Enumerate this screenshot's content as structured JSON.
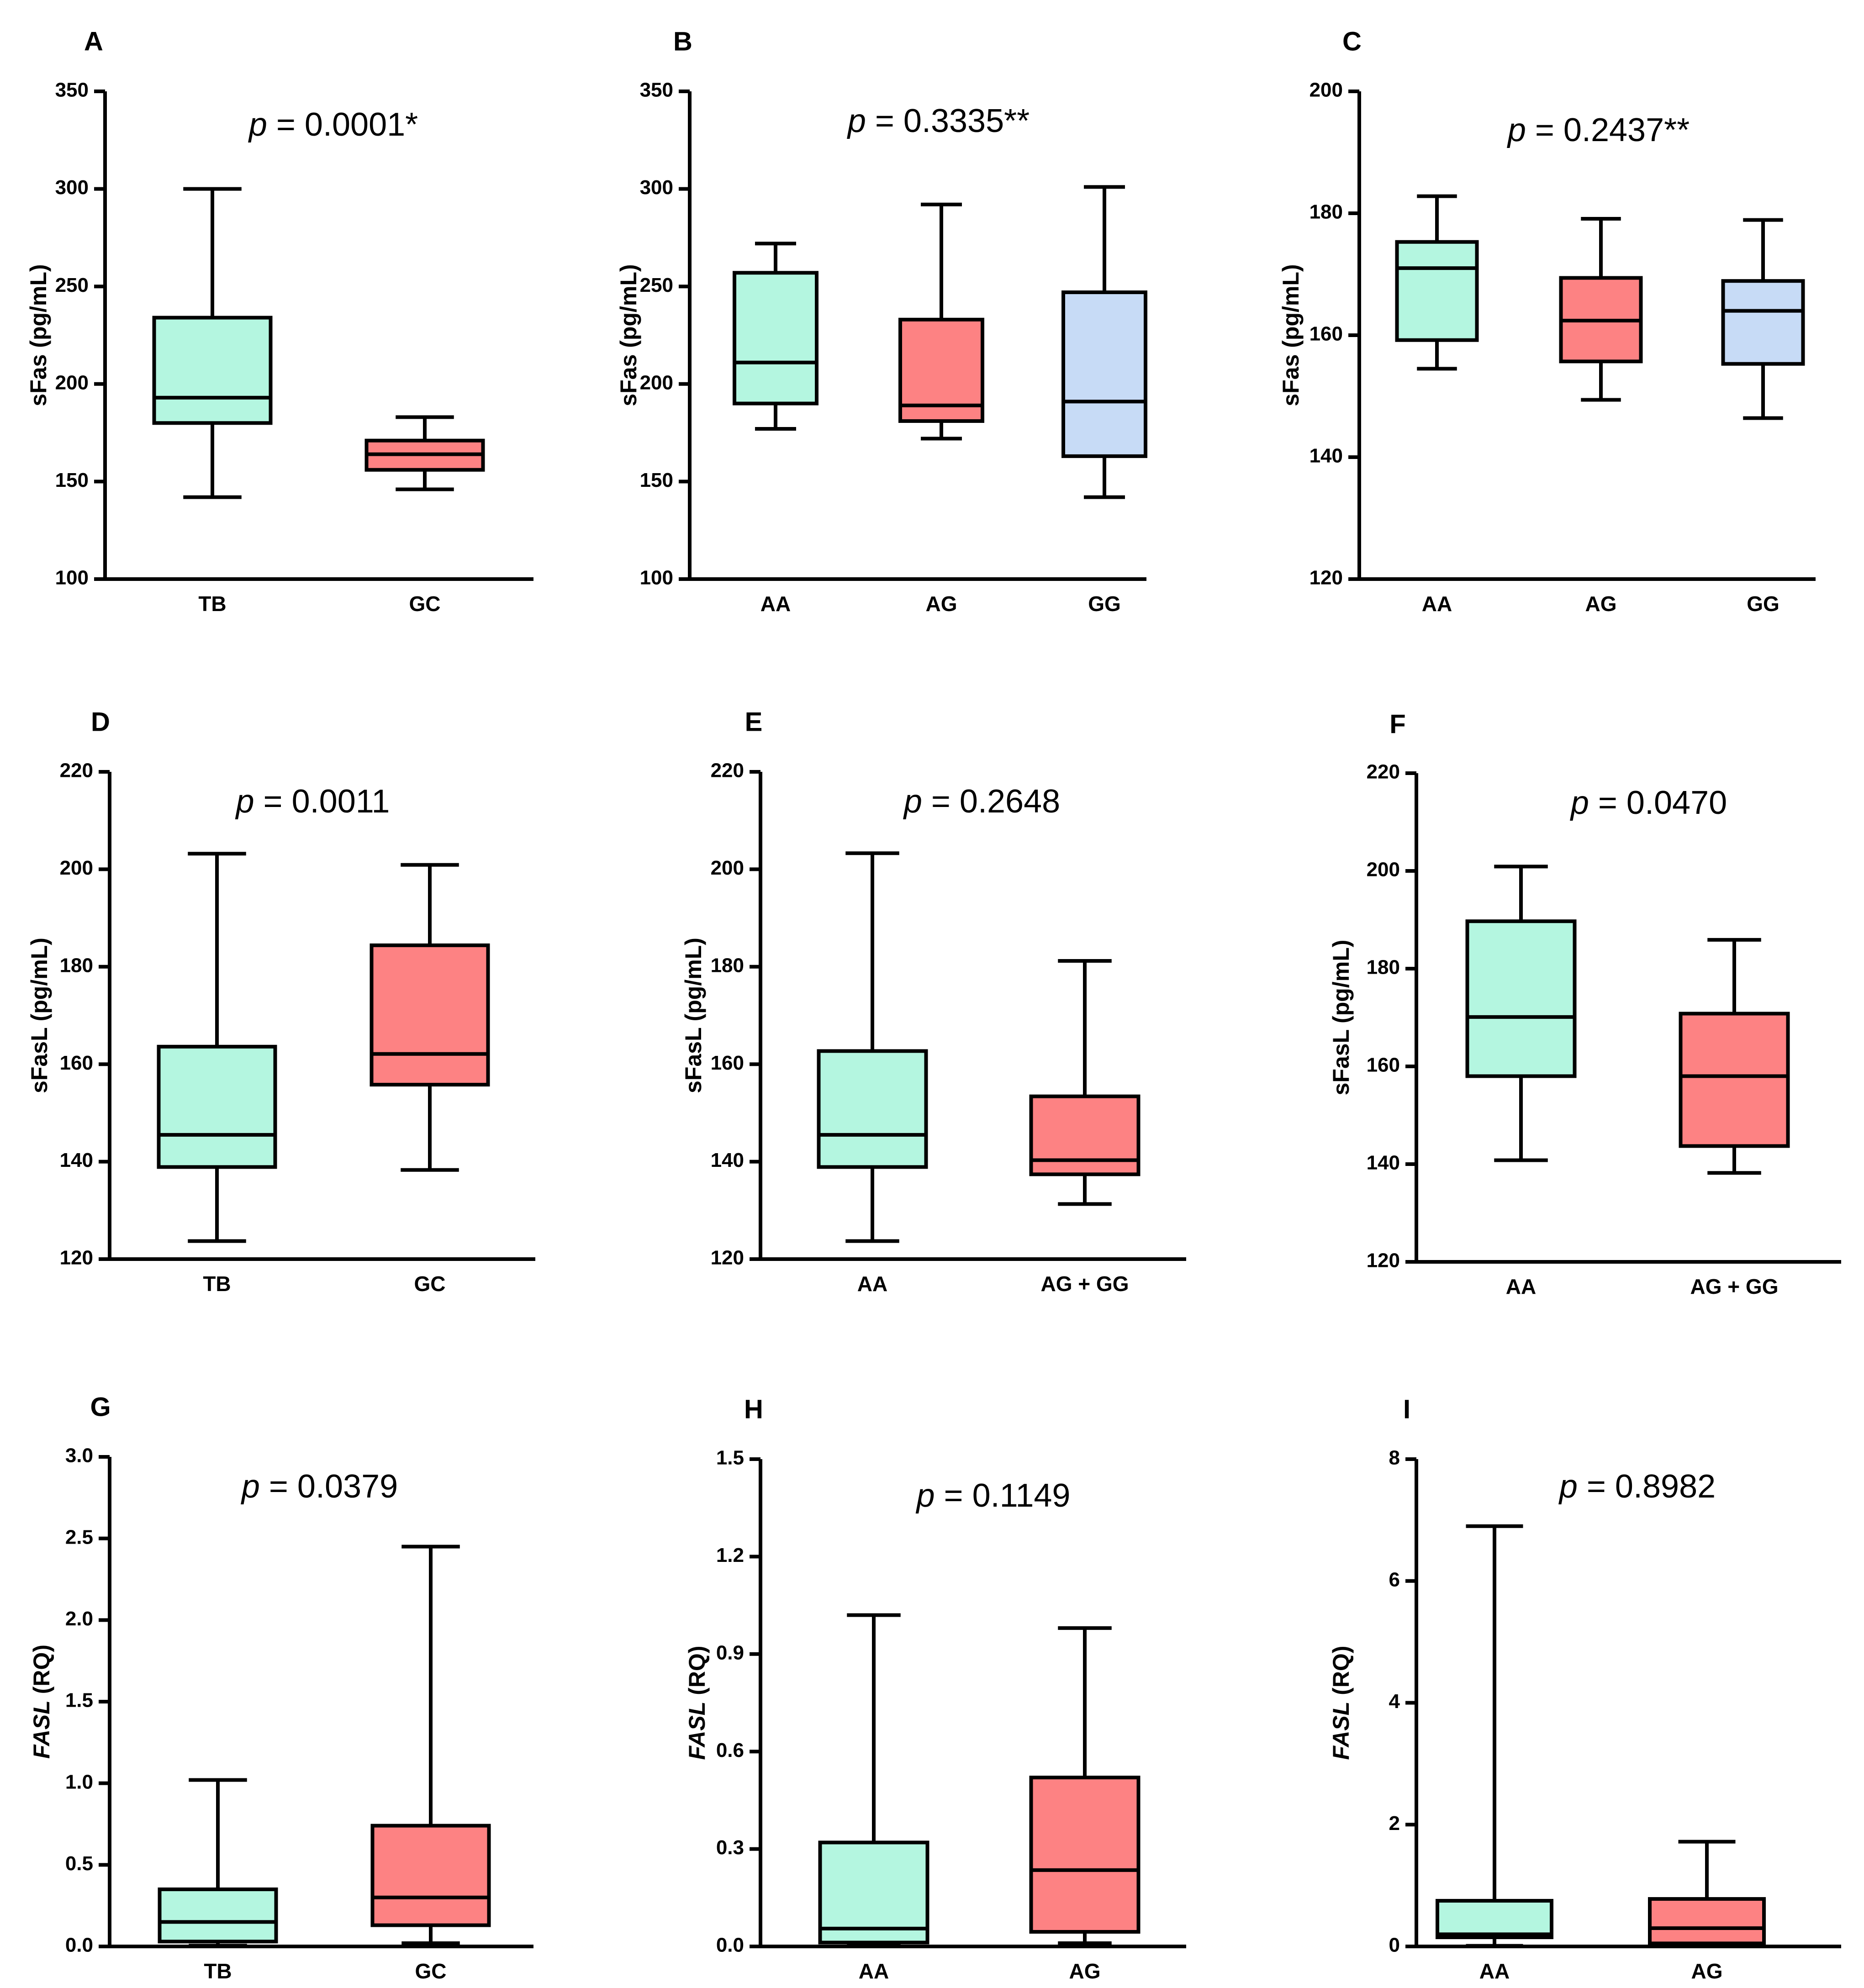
{
  "colors": {
    "green": "#b4f6e0",
    "red": "#fd8283",
    "blue": "#c7dbf6"
  },
  "chart_data": [
    {
      "panel": "A",
      "type": "box",
      "ylabel": "sFas (pg/mL)",
      "ylabel_italic_part": "",
      "ylim": [
        100,
        350
      ],
      "yticks": [
        100,
        150,
        200,
        250,
        300,
        350
      ],
      "ytick_labels": [
        "100",
        "150",
        "200",
        "250",
        "300",
        "350"
      ],
      "p_prefix": "p",
      "p_value": " = 0.0001*",
      "categories": [
        "TB",
        "GC"
      ],
      "boxes": [
        {
          "category": "TB",
          "color": "green",
          "min": 142,
          "q1": 180,
          "median": 193,
          "q3": 234,
          "max": 300
        },
        {
          "category": "GC",
          "color": "red",
          "min": 146,
          "q1": 156,
          "median": 164,
          "q3": 171,
          "max": 183
        }
      ]
    },
    {
      "panel": "B",
      "type": "box",
      "ylabel": "sFas (pg/mL)",
      "ylabel_italic_part": "",
      "ylim": [
        100,
        350
      ],
      "yticks": [
        100,
        150,
        200,
        250,
        300,
        350
      ],
      "ytick_labels": [
        "100",
        "150",
        "200",
        "250",
        "300",
        "350"
      ],
      "p_prefix": "p",
      "p_value": " = 0.3335**",
      "categories": [
        "AA",
        "AG",
        "GG"
      ],
      "boxes": [
        {
          "category": "AA",
          "color": "green",
          "min": 177,
          "q1": 190,
          "median": 211,
          "q3": 257,
          "max": 272
        },
        {
          "category": "AG",
          "color": "red",
          "min": 172,
          "q1": 181,
          "median": 189,
          "q3": 233,
          "max": 292
        },
        {
          "category": "GG",
          "color": "blue",
          "min": 142,
          "q1": 163,
          "median": 191,
          "q3": 247,
          "max": 301
        }
      ]
    },
    {
      "panel": "C",
      "type": "box",
      "ylabel": "sFas (pg/mL)",
      "ylabel_italic_part": "",
      "ylim": [
        120,
        200
      ],
      "yticks": [
        120,
        140,
        160,
        180,
        200
      ],
      "ytick_labels": [
        "120",
        "140",
        "160",
        "180",
        "200"
      ],
      "p_prefix": "p",
      "p_value": " = 0.2437**",
      "categories": [
        "AA",
        "AG",
        "GG"
      ],
      "boxes": [
        {
          "category": "AA",
          "color": "green",
          "min": 154.5,
          "q1": 159.2,
          "median": 171,
          "q3": 175.3,
          "max": 182.8
        },
        {
          "category": "AG",
          "color": "red",
          "min": 149.4,
          "q1": 155.7,
          "median": 162.4,
          "q3": 169.4,
          "max": 179.1
        },
        {
          "category": "GG",
          "color": "blue",
          "min": 146.4,
          "q1": 155.3,
          "median": 164,
          "q3": 168.9,
          "max": 178.9
        }
      ]
    },
    {
      "panel": "D",
      "type": "box",
      "ylabel": "sFasL (pg/mL)",
      "ylabel_italic_part": "",
      "ylim": [
        120,
        220
      ],
      "yticks": [
        120,
        140,
        160,
        180,
        200,
        220
      ],
      "ytick_labels": [
        "120",
        "140",
        "160",
        "180",
        "200",
        "220"
      ],
      "p_prefix": "p",
      "p_value": " = 0.0011",
      "categories": [
        "TB",
        "GC"
      ],
      "boxes": [
        {
          "category": "TB",
          "color": "green",
          "min": 123.7,
          "q1": 138.9,
          "median": 145.5,
          "q3": 163.6,
          "max": 203.2
        },
        {
          "category": "GC",
          "color": "red",
          "min": 138.3,
          "q1": 155.8,
          "median": 162.1,
          "q3": 184.4,
          "max": 200.9
        }
      ]
    },
    {
      "panel": "E",
      "type": "box",
      "ylabel": "sFasL (pg/mL)",
      "ylabel_italic_part": "",
      "ylim": [
        120,
        220
      ],
      "yticks": [
        120,
        140,
        160,
        180,
        200,
        220
      ],
      "ytick_labels": [
        "120",
        "140",
        "160",
        "180",
        "200",
        "220"
      ],
      "p_prefix": "p",
      "p_value": " = 0.2648",
      "categories": [
        "AA",
        "AG + GG"
      ],
      "boxes": [
        {
          "category": "AA",
          "color": "green",
          "min": 123.7,
          "q1": 138.9,
          "median": 145.5,
          "q3": 162.7,
          "max": 203.3
        },
        {
          "category": "AG + GG",
          "color": "red",
          "min": 131.3,
          "q1": 137.4,
          "median": 140.3,
          "q3": 153.4,
          "max": 181.2
        }
      ]
    },
    {
      "panel": "F",
      "type": "box",
      "ylabel": "sFasL (pg/mL)",
      "ylabel_italic_part": "",
      "ylim": [
        120,
        220
      ],
      "yticks": [
        120,
        140,
        160,
        180,
        200,
        220
      ],
      "ytick_labels": [
        "120",
        "140",
        "160",
        "180",
        "200",
        "220"
      ],
      "p_prefix": "p",
      "p_value": " = 0.0470",
      "categories": [
        "AA",
        "AG + GG"
      ],
      "boxes": [
        {
          "category": "AA",
          "color": "green",
          "min": 140.8,
          "q1": 158,
          "median": 170.1,
          "q3": 189.7,
          "max": 200.9
        },
        {
          "category": "AG + GG",
          "color": "red",
          "min": 138.2,
          "q1": 143.7,
          "median": 158,
          "q3": 170.8,
          "max": 185.9
        }
      ]
    },
    {
      "panel": "G",
      "type": "box",
      "ylabel": " (RQ)",
      "ylabel_italic_part": "FASL",
      "ylim": [
        0,
        3.0
      ],
      "yticks": [
        0,
        0.5,
        1.0,
        1.5,
        2.0,
        2.5,
        3.0
      ],
      "ytick_labels": [
        "0.0",
        "0.5",
        "1.0",
        "1.5",
        "2.0",
        "2.5",
        "3.0"
      ],
      "p_prefix": "p",
      "p_value": " = 0.0379",
      "categories": [
        "TB",
        "GC"
      ],
      "boxes": [
        {
          "category": "TB",
          "color": "green",
          "min": 0.005,
          "q1": 0.03,
          "median": 0.15,
          "q3": 0.35,
          "max": 1.02
        },
        {
          "category": "GC",
          "color": "red",
          "min": 0.02,
          "q1": 0.13,
          "median": 0.3,
          "q3": 0.74,
          "max": 2.45
        }
      ]
    },
    {
      "panel": "H",
      "type": "box",
      "ylabel": " (RQ)",
      "ylabel_italic_part": "FASL",
      "ylim": [
        0,
        1.5
      ],
      "yticks": [
        0,
        0.3,
        0.6,
        0.9,
        1.2,
        1.5
      ],
      "ytick_labels": [
        "0.0",
        "0.3",
        "0.6",
        "0.9",
        "1.2",
        "1.5"
      ],
      "p_prefix": "p",
      "p_value": " = 0.1149",
      "categories": [
        "AA",
        "AG"
      ],
      "boxes": [
        {
          "category": "AA",
          "color": "green",
          "min": 0.002,
          "q1": 0.012,
          "median": 0.055,
          "q3": 0.32,
          "max": 1.02
        },
        {
          "category": "AG",
          "color": "red",
          "min": 0.01,
          "q1": 0.045,
          "median": 0.235,
          "q3": 0.52,
          "max": 0.98
        }
      ]
    },
    {
      "panel": "I",
      "type": "box",
      "ylabel": " (RQ)",
      "ylabel_italic_part": "FASL",
      "ylim": [
        0,
        8
      ],
      "yticks": [
        0,
        2,
        4,
        6,
        8
      ],
      "ytick_labels": [
        "0",
        "2",
        "4",
        "6",
        "8"
      ],
      "p_prefix": "p",
      "p_value": " = 0.8982",
      "categories": [
        "AA",
        "AG"
      ],
      "boxes": [
        {
          "category": "AA",
          "color": "green",
          "min": 0.01,
          "q1": 0.15,
          "median": 0.2,
          "q3": 0.75,
          "max": 6.9
        },
        {
          "category": "AG",
          "color": "red",
          "min": 0.01,
          "q1": 0.05,
          "median": 0.3,
          "q3": 0.78,
          "max": 1.72
        }
      ]
    }
  ]
}
